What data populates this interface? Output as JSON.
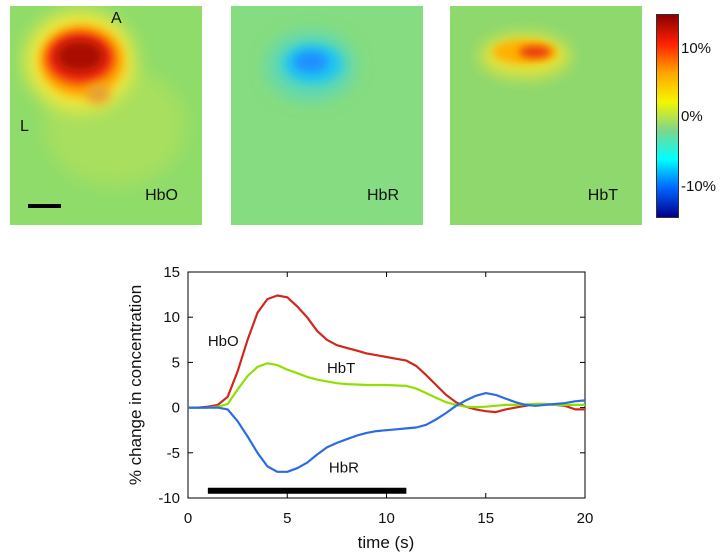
{
  "maps": {
    "panels": [
      {
        "name": "HbO"
      },
      {
        "name": "HbR"
      },
      {
        "name": "HbT"
      }
    ],
    "orientation": {
      "anterior": "A",
      "lateral": "L"
    },
    "colorbar": {
      "ticks": [
        "10%",
        "0%",
        "-10%"
      ],
      "colors": [
        "#8b0000",
        "#ff2000",
        "#ffa500",
        "#f5f500",
        "#7ed68c",
        "#00ffff",
        "#0064ff",
        "#00008b"
      ]
    }
  },
  "chart_data": {
    "type": "line",
    "xlabel": "time (s)",
    "ylabel": "% change in concentration",
    "xlim": [
      0,
      20
    ],
    "ylim": [
      -10,
      15
    ],
    "xticks": [
      0,
      5,
      10,
      15,
      20
    ],
    "yticks": [
      15,
      10,
      5,
      0,
      -5,
      -10
    ],
    "grid": false,
    "x": [
      0,
      0.5,
      1,
      1.5,
      2,
      2.5,
      3,
      3.5,
      4,
      4.5,
      5,
      5.5,
      6,
      6.5,
      7,
      7.5,
      8,
      8.5,
      9,
      9.5,
      10,
      10.5,
      11,
      11.5,
      12,
      12.5,
      13,
      13.5,
      14,
      14.5,
      15,
      15.5,
      16,
      16.5,
      17,
      17.5,
      18,
      18.5,
      19,
      19.5,
      20
    ],
    "series": [
      {
        "name": "HbO",
        "color": "#d0281e",
        "values": [
          0,
          0,
          0.1,
          0.3,
          1.2,
          4,
          7.5,
          10.5,
          12,
          12.4,
          12.2,
          11.2,
          10,
          8.5,
          7.5,
          6.9,
          6.6,
          6.3,
          6.0,
          5.8,
          5.6,
          5.4,
          5.2,
          4.6,
          3.6,
          2.5,
          1.4,
          0.6,
          0.1,
          -0.2,
          -0.4,
          -0.5,
          -0.2,
          0,
          0.2,
          0.4,
          0.4,
          0.3,
          0.2,
          -0.2,
          -0.2
        ]
      },
      {
        "name": "HbT",
        "color": "#8ee000",
        "values": [
          0,
          0,
          0,
          0.1,
          0.4,
          2,
          3.5,
          4.5,
          4.9,
          4.7,
          4.2,
          3.8,
          3.4,
          3.1,
          2.9,
          2.7,
          2.6,
          2.55,
          2.5,
          2.5,
          2.5,
          2.45,
          2.4,
          2.1,
          1.6,
          1.1,
          0.6,
          0.3,
          0.1,
          0.05,
          0.1,
          0.2,
          0.3,
          0.3,
          0.35,
          0.4,
          0.4,
          0.3,
          0.3,
          0.3,
          0.3
        ]
      },
      {
        "name": "HbR",
        "color": "#2a6de0",
        "values": [
          0,
          0,
          0,
          0,
          -0.2,
          -1.5,
          -3.2,
          -5,
          -6.5,
          -7.1,
          -7.1,
          -6.7,
          -6.1,
          -5.2,
          -4.4,
          -3.9,
          -3.5,
          -3.1,
          -2.8,
          -2.6,
          -2.5,
          -2.4,
          -2.3,
          -2.2,
          -1.9,
          -1.3,
          -0.6,
          0.2,
          0.8,
          1.3,
          1.6,
          1.4,
          1.0,
          0.6,
          0.3,
          0.2,
          0.3,
          0.4,
          0.5,
          0.7,
          0.8
        ]
      }
    ],
    "stimulus": {
      "start": 1,
      "end": 11,
      "y": -9.2
    },
    "labels": [
      {
        "text": "HbO",
        "x": 1,
        "y": 6.8
      },
      {
        "text": "HbT",
        "x": 7,
        "y": 3.8
      },
      {
        "text": "HbR",
        "x": 7.1,
        "y": -7.2
      }
    ]
  }
}
